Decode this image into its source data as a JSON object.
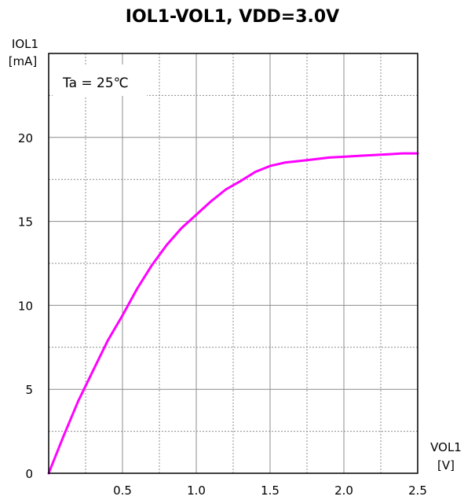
{
  "chart_data": {
    "type": "line",
    "title": "IOL1-VOL1, VDD=3.0V",
    "xlabel_name": "VOL1",
    "xlabel_unit": "[V]",
    "ylabel_name": "IOL1",
    "ylabel_unit": "[mA]",
    "annotation": "Ta = 25℃",
    "xlim": [
      0,
      2.5
    ],
    "ylim": [
      0,
      25
    ],
    "xticks": [
      0.5,
      1.0,
      1.5,
      2.0,
      2.5
    ],
    "xtick_labels": [
      "0.5",
      "1.0",
      "1.5",
      "2.0",
      "2.5"
    ],
    "yticks": [
      0,
      5,
      10,
      15,
      20
    ],
    "ytick_labels": [
      "0",
      "5",
      "10",
      "15",
      "20"
    ],
    "grid": true,
    "line_color": "#ff00ff",
    "series": [
      {
        "x": [
          0,
          0.1,
          0.2,
          0.3,
          0.4,
          0.5,
          0.6,
          0.7,
          0.8,
          0.9,
          1.0,
          1.1,
          1.2,
          1.3,
          1.4,
          1.5,
          1.6,
          1.7,
          1.8,
          1.9,
          2.0,
          2.1,
          2.2,
          2.3,
          2.4,
          2.5
        ],
        "y": [
          0,
          2.2,
          4.3,
          6.1,
          7.9,
          9.4,
          11.0,
          12.4,
          13.6,
          14.6,
          15.4,
          16.2,
          16.9,
          17.4,
          17.95,
          18.3,
          18.5,
          18.6,
          18.7,
          18.8,
          18.85,
          18.9,
          18.95,
          19.0,
          19.05,
          19.05
        ]
      }
    ]
  }
}
